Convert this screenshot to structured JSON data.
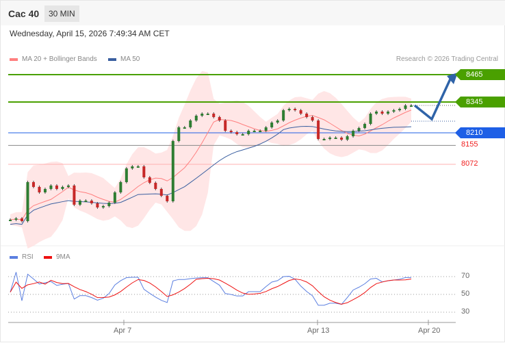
{
  "header": {
    "title": "Cac 40",
    "timeframe": "30 MIN"
  },
  "timestamp": "Wednesday, April 15, 2026 7:49:34 AM CET",
  "legend": {
    "ma20": "MA 20 + Bollinger Bands",
    "ma50": "MA 50",
    "rsi": "RSI",
    "ma9": "9MA"
  },
  "credit": "Research © 2026 Trading Central",
  "levels": [
    {
      "value": "8465",
      "color": "#4aa000",
      "style": "tag"
    },
    {
      "value": "8345",
      "color": "#4aa000",
      "style": "tag"
    },
    {
      "value": "8210",
      "color": "#1e5fe6",
      "style": "tag"
    },
    {
      "value": "8155",
      "color": "#f02020",
      "style": "text"
    },
    {
      "value": "8072",
      "color": "#f02020",
      "style": "text"
    }
  ],
  "colors": {
    "ma20": "#ff7f7f",
    "ma50": "#3a5fa0",
    "band": "#ffe0e0",
    "rsi": "#5b7fe0",
    "ma9": "#ee1111",
    "arrow": "#2f63a8"
  },
  "chart_data": {
    "type": "line",
    "title": "Cac 40 30 MIN",
    "price_range": [
      7739,
      8609
    ],
    "closes": [
      7829,
      7835,
      7823,
      7994,
      7973,
      7949,
      7964,
      7979,
      7964,
      7973,
      7979,
      7895,
      7913,
      7913,
      7901,
      7883,
      7889,
      7904,
      7949,
      7994,
      8054,
      8063,
      8063,
      8015,
      7991,
      7964,
      7934,
      7910,
      8174,
      8234,
      8234,
      8264,
      8285,
      8294,
      8294,
      8279,
      8264,
      8219,
      8213,
      8204,
      8204,
      8219,
      8219,
      8219,
      8234,
      8255,
      8264,
      8309,
      8315,
      8309,
      8294,
      8279,
      8264,
      8183,
      8183,
      8189,
      8189,
      8180,
      8195,
      8219,
      8231,
      8249,
      8294,
      8303,
      8294,
      8303,
      8309,
      8315,
      8330,
      8330
    ],
    "forecast": [
      8330,
      8270,
      8465
    ],
    "rsi_ticks": [
      70,
      50,
      30
    ],
    "x_ticks": [
      "Apr 7",
      "Apr 13",
      "Apr 20"
    ]
  }
}
